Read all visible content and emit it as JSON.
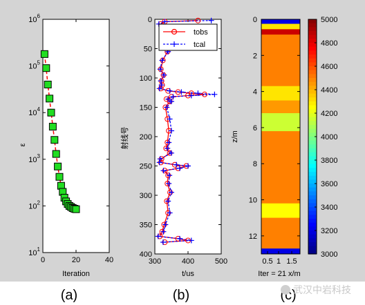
{
  "colors": {
    "figure_bg": "#d4d4d4",
    "axes_bg": "#ffffff",
    "marker_green": "#22dd22",
    "tobs": "#ff0000",
    "tcal": "#0000ff"
  },
  "panel_captions": [
    "(a)",
    "(b)",
    "(c)"
  ],
  "watermark": "武汉中岩科技",
  "chart_data": [
    {
      "type": "line",
      "panel": "a",
      "xlabel": "Iteration",
      "ylabel": "ε",
      "xlim": [
        0,
        40
      ],
      "ylim": [
        10,
        1000000
      ],
      "yscale": "log",
      "xticks": [
        "0",
        "20",
        "40"
      ],
      "yticks": [
        {
          "base": "10",
          "exp": "1"
        },
        {
          "base": "10",
          "exp": "2"
        },
        {
          "base": "10",
          "exp": "3"
        },
        {
          "base": "10",
          "exp": "4"
        },
        {
          "base": "10",
          "exp": "5"
        },
        {
          "base": "10",
          "exp": "6"
        }
      ],
      "series": [
        {
          "x": [
            1,
            2,
            3,
            4,
            5,
            6,
            7,
            8,
            9,
            10,
            11,
            12,
            13,
            14,
            15,
            16,
            17,
            18,
            19,
            20
          ],
          "y": [
            180000,
            90000,
            40000,
            20000,
            10000,
            5000,
            2600,
            1300,
            700,
            420,
            270,
            200,
            150,
            125,
            110,
            100,
            95,
            90,
            87,
            85
          ]
        }
      ]
    },
    {
      "type": "line",
      "panel": "b",
      "xlabel": "t/us",
      "ylabel": "射线号",
      "xlim": [
        300,
        500
      ],
      "ylim": [
        400,
        0
      ],
      "xticks": [
        "300",
        "400",
        "500"
      ],
      "yticks": [
        "0",
        "50",
        "100",
        "150",
        "200",
        "250",
        "300",
        "350",
        "400"
      ],
      "legend_position": "top-right",
      "series": [
        {
          "name": "tobs",
          "points": [
            [
              430,
              2
            ],
            [
              330,
              4
            ],
            [
              318,
              8
            ],
            [
              322,
              14
            ],
            [
              332,
              22
            ],
            [
              326,
              30
            ],
            [
              334,
              40
            ],
            [
              338,
              55
            ],
            [
              324,
              70
            ],
            [
              318,
              85
            ],
            [
              326,
              95
            ],
            [
              320,
              105
            ],
            [
              322,
              112
            ],
            [
              318,
              118
            ],
            [
              340,
              122
            ],
            [
              370,
              124
            ],
            [
              410,
              126
            ],
            [
              450,
              128
            ],
            [
              400,
              130
            ],
            [
              350,
              132
            ],
            [
              335,
              136
            ],
            [
              345,
              140
            ],
            [
              332,
              150
            ],
            [
              338,
              170
            ],
            [
              342,
              190
            ],
            [
              338,
              210
            ],
            [
              334,
              220
            ],
            [
              345,
              228
            ],
            [
              320,
              238
            ],
            [
              318,
              244
            ],
            [
              360,
              248
            ],
            [
              395,
              250
            ],
            [
              370,
              254
            ],
            [
              330,
              258
            ],
            [
              340,
              266
            ],
            [
              338,
              280
            ],
            [
              346,
              295
            ],
            [
              336,
              310
            ],
            [
              340,
              330
            ],
            [
              328,
              350
            ],
            [
              322,
              362
            ],
            [
              315,
              370
            ],
            [
              370,
              374
            ],
            [
              400,
              377
            ],
            [
              330,
              380
            ]
          ]
        },
        {
          "name": "tcal",
          "points": [
            [
              470,
              2
            ],
            [
              330,
              4
            ],
            [
              312,
              8
            ],
            [
              322,
              14
            ],
            [
              335,
              22
            ],
            [
              325,
              30
            ],
            [
              336,
              40
            ],
            [
              340,
              55
            ],
            [
              322,
              70
            ],
            [
              316,
              85
            ],
            [
              328,
              95
            ],
            [
              318,
              105
            ],
            [
              320,
              112
            ],
            [
              314,
              118
            ],
            [
              345,
              122
            ],
            [
              380,
              124
            ],
            [
              430,
              126
            ],
            [
              480,
              128
            ],
            [
              410,
              130
            ],
            [
              355,
              132
            ],
            [
              340,
              136
            ],
            [
              350,
              140
            ],
            [
              336,
              150
            ],
            [
              345,
              170
            ],
            [
              350,
              190
            ],
            [
              342,
              210
            ],
            [
              338,
              220
            ],
            [
              350,
              228
            ],
            [
              316,
              238
            ],
            [
              314,
              244
            ],
            [
              365,
              248
            ],
            [
              400,
              250
            ],
            [
              375,
              254
            ],
            [
              326,
              258
            ],
            [
              344,
              266
            ],
            [
              342,
              280
            ],
            [
              350,
              295
            ],
            [
              340,
              310
            ],
            [
              345,
              330
            ],
            [
              332,
              350
            ],
            [
              326,
              362
            ],
            [
              310,
              370
            ],
            [
              375,
              374
            ],
            [
              410,
              377
            ],
            [
              325,
              380
            ]
          ]
        }
      ]
    },
    {
      "type": "heatmap",
      "panel": "c",
      "xlabel": "Iter = 21 x/m",
      "ylabel": "z/m",
      "xticks": [
        "0.5",
        "1",
        "1.5"
      ],
      "ylim": [
        13,
        0
      ],
      "yticks": [
        "0",
        "2",
        "4",
        "6",
        "8",
        "10",
        "12"
      ],
      "colorbar": {
        "min": 3000,
        "max": 5000,
        "ticks": [
          "3000",
          "3200",
          "3400",
          "3600",
          "3800",
          "4000",
          "4200",
          "4400",
          "4600",
          "4800",
          "5000"
        ]
      },
      "dominant_value": 4500,
      "layers": [
        {
          "z_top": 0,
          "z_bottom": 0.25,
          "value": 3200
        },
        {
          "z_top": 0.25,
          "z_bottom": 0.55,
          "value": 4300
        },
        {
          "z_top": 0.55,
          "z_bottom": 0.85,
          "value": 4850
        },
        {
          "z_top": 0.85,
          "z_bottom": 3.7,
          "value": 4500
        },
        {
          "z_top": 3.7,
          "z_bottom": 4.5,
          "value": 4300
        },
        {
          "z_top": 4.5,
          "z_bottom": 5.2,
          "value": 4450
        },
        {
          "z_top": 5.2,
          "z_bottom": 6.2,
          "value": 4150
        },
        {
          "z_top": 6.2,
          "z_bottom": 10.2,
          "value": 4500
        },
        {
          "z_top": 10.2,
          "z_bottom": 11.0,
          "value": 4250
        },
        {
          "z_top": 11.0,
          "z_bottom": 12.7,
          "value": 4500
        },
        {
          "z_top": 12.7,
          "z_bottom": 13.0,
          "value": 3200
        }
      ]
    }
  ]
}
